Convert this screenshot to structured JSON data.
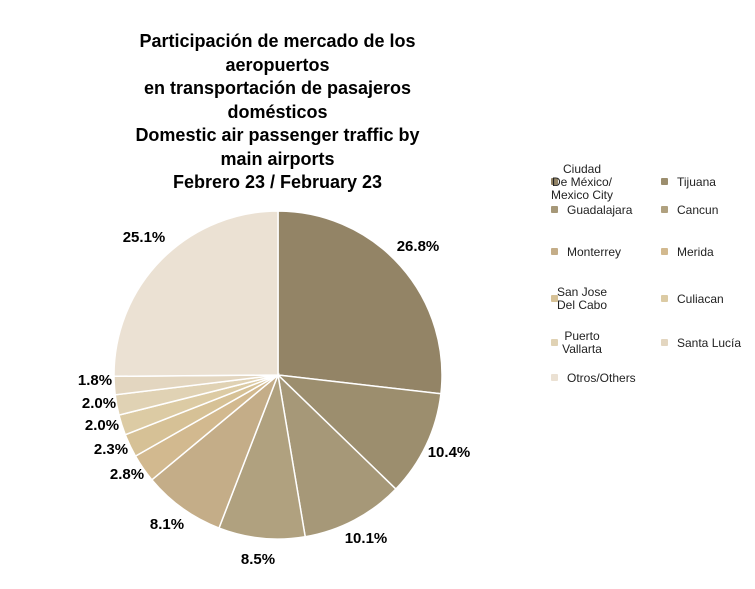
{
  "title_lines": [
    "Participación de mercado de los",
    "aeropuertos",
    "en transportación de pasajeros",
    "domésticos",
    "Domestic air passenger traffic by",
    "main airports",
    "Febrero 23 / February 23"
  ],
  "chart_data": {
    "type": "pie",
    "title": "Participación de mercado de los aeropuertos en transportación de pasajeros domésticos Domestic air passenger traffic by main airports Febrero 23 / February 23",
    "slices": [
      {
        "label": "Ciudad De México/ Mexico City",
        "value": 26.8,
        "display": "26.8%",
        "color": "#938466"
      },
      {
        "label": "Tijuana",
        "value": 10.4,
        "display": "10.4%",
        "color": "#9c8e6e"
      },
      {
        "label": "Guadalajara",
        "value": 10.1,
        "display": "10.1%",
        "color": "#a69878"
      },
      {
        "label": "Cancun",
        "value": 8.5,
        "display": "8.5%",
        "color": "#b0a17f"
      },
      {
        "label": "Monterrey",
        "value": 8.1,
        "display": "8.1%",
        "color": "#c4ad88"
      },
      {
        "label": "Merida",
        "value": 2.8,
        "display": "2.8%",
        "color": "#d2b98f"
      },
      {
        "label": "San Jose Del Cabo",
        "value": 2.3,
        "display": "2.3%",
        "color": "#d6c196"
      },
      {
        "label": "Culiacan",
        "value": 2.0,
        "display": "2.0%",
        "color": "#dccba4"
      },
      {
        "label": "Puerto Vallarta",
        "value": 2.0,
        "display": "2.0%",
        "color": "#e0d2b4"
      },
      {
        "label": "Santa Lucía",
        "value": 1.8,
        "display": "1.8%",
        "color": "#e3d6c0"
      },
      {
        "label": "Otros/Others",
        "value": 25.1,
        "display": "25.1%",
        "color": "#ebe1d3"
      }
    ],
    "legend_position": "right"
  },
  "legend": [
    {
      "text": "Ciudad\nDe México/\nMexico City",
      "color": "#938466"
    },
    {
      "text": "Tijuana",
      "color": "#9c8e6e"
    },
    {
      "text": "Guadalajara",
      "color": "#a69878"
    },
    {
      "text": "Cancun",
      "color": "#b0a17f"
    },
    {
      "text": "Monterrey",
      "color": "#c4ad88"
    },
    {
      "text": "Merida",
      "color": "#d2b98f"
    },
    {
      "text": "San Jose\nDel Cabo",
      "color": "#d6c196"
    },
    {
      "text": "Culiacan",
      "color": "#dccba4"
    },
    {
      "text": "Puerto\nVallarta",
      "color": "#e0d2b4"
    },
    {
      "text": "Santa Lucía",
      "color": "#e3d6c0"
    },
    {
      "text": "Otros/Others",
      "color": "#ebe1d3"
    }
  ]
}
